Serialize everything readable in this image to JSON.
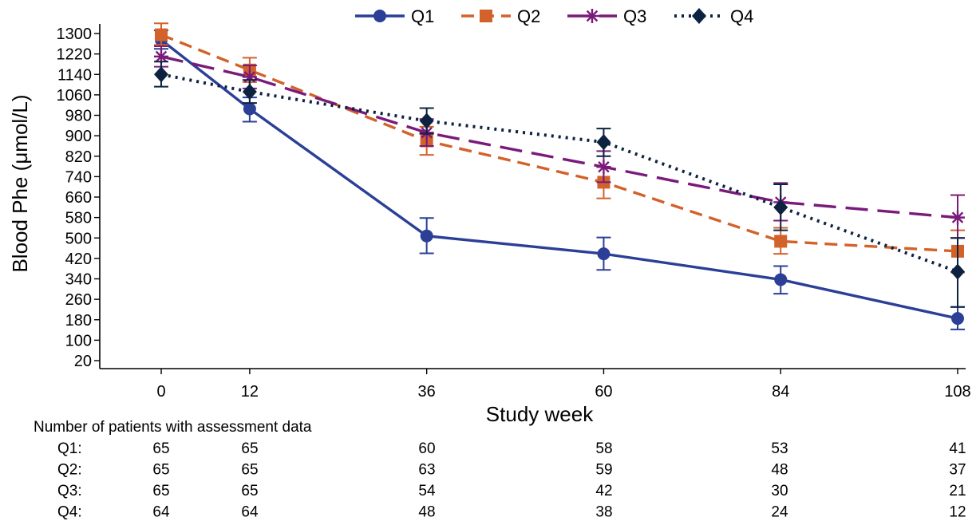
{
  "chart_data": {
    "type": "line",
    "xlabel": "Study week",
    "ylabel": "Blood Phe (μmol/L)",
    "x": [
      0,
      12,
      36,
      60,
      84,
      108
    ],
    "x_ticks": [
      "0",
      "12",
      "36",
      "60",
      "84",
      "108"
    ],
    "ylim": [
      20,
      1300
    ],
    "y_ticks": [
      20,
      100,
      180,
      260,
      340,
      420,
      500,
      580,
      660,
      740,
      820,
      900,
      980,
      1060,
      1140,
      1220,
      1300
    ],
    "grid": false,
    "legend_position": "top",
    "series": [
      {
        "name": "Q1",
        "color": "#2b3f97",
        "dash": "solid",
        "marker": "circle",
        "values": [
          1275,
          1005,
          508,
          438,
          337,
          185
        ],
        "err_low": [
          1240,
          955,
          440,
          375,
          282,
          142
        ],
        "err_high": [
          1312,
          1050,
          578,
          502,
          390,
          230
        ]
      },
      {
        "name": "Q2",
        "color": "#d2622a",
        "dash": "dash",
        "marker": "square",
        "values": [
          1295,
          1157,
          880,
          718,
          487,
          448
        ],
        "err_low": [
          1255,
          1110,
          825,
          655,
          438,
          365
        ],
        "err_high": [
          1340,
          1205,
          935,
          778,
          540,
          530
        ]
      },
      {
        "name": "Q3",
        "color": "#7a1a7a",
        "dash": "longdash",
        "marker": "asterisk",
        "values": [
          1210,
          1130,
          912,
          778,
          640,
          580
        ],
        "err_low": [
          1170,
          1085,
          860,
          718,
          568,
          500
        ],
        "err_high": [
          1250,
          1175,
          965,
          840,
          715,
          668
        ]
      },
      {
        "name": "Q4",
        "color": "#0c2240",
        "dash": "dot",
        "marker": "diamond",
        "values": [
          1140,
          1072,
          958,
          875,
          620,
          368
        ],
        "err_low": [
          1092,
          1028,
          908,
          820,
          530,
          230
        ],
        "err_high": [
          1190,
          1118,
          1008,
          928,
          710,
          500
        ]
      }
    ],
    "patients_table": {
      "title": "Number of patients with assessment data",
      "rows": [
        {
          "label": "Q1:",
          "counts": [
            "65",
            "65",
            "60",
            "58",
            "53",
            "41"
          ]
        },
        {
          "label": "Q2:",
          "counts": [
            "65",
            "65",
            "63",
            "59",
            "48",
            "37"
          ]
        },
        {
          "label": "Q3:",
          "counts": [
            "65",
            "65",
            "54",
            "42",
            "30",
            "21"
          ]
        },
        {
          "label": "Q4:",
          "counts": [
            "64",
            "64",
            "48",
            "38",
            "24",
            "12"
          ]
        }
      ]
    }
  }
}
